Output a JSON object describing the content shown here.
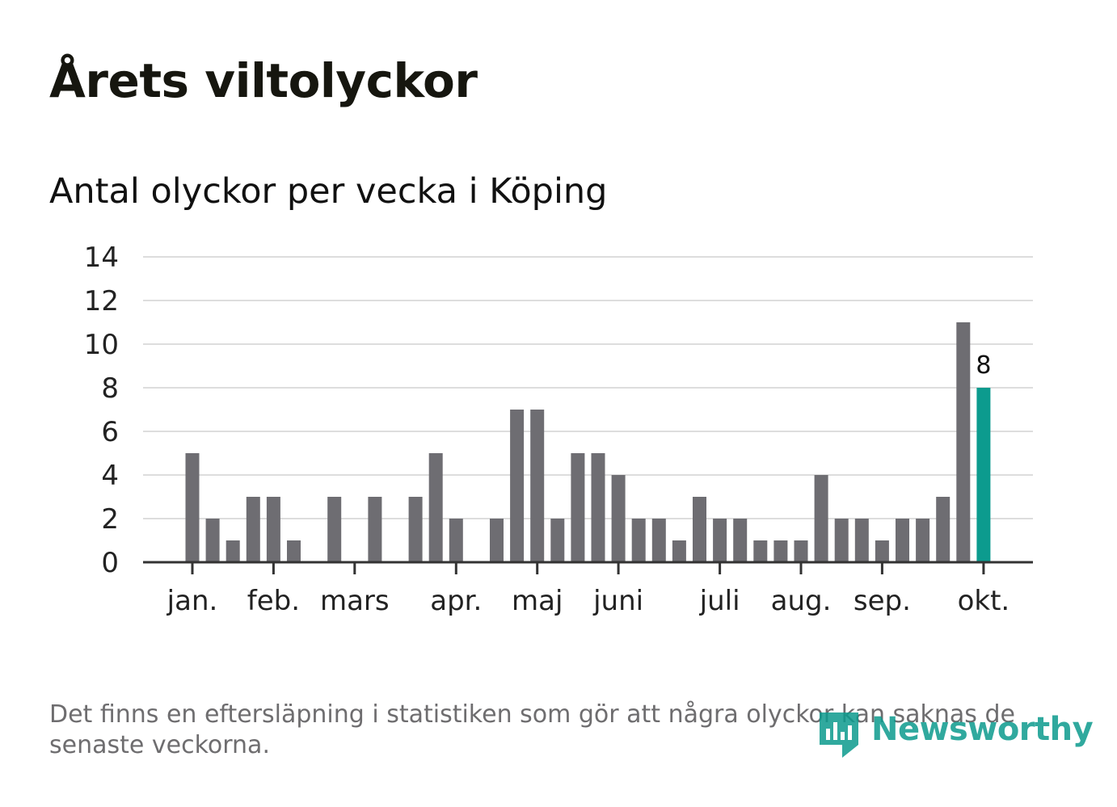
{
  "header": {
    "title": "Årets viltolyckor",
    "subtitle": "Antal olyckor per vecka i Köping"
  },
  "footer": {
    "note": "Det finns en eftersläpning i statistiken som gör att några olyckor kan saknas de senaste veckorna.",
    "logo_text": "Newsworthy"
  },
  "colors": {
    "bar": "#6e6d72",
    "highlight": "#0c9b8e",
    "grid": "#dddddd",
    "axis": "#333333"
  },
  "chart_data": {
    "type": "bar",
    "title": "Antal olyckor per vecka i Köping",
    "xlabel": "",
    "ylabel": "",
    "ylim": [
      0,
      14
    ],
    "yticks": [
      0,
      2,
      4,
      6,
      8,
      10,
      12,
      14
    ],
    "grid": true,
    "month_labels": [
      {
        "label": "jan.",
        "week": 1
      },
      {
        "label": "feb.",
        "week": 5
      },
      {
        "label": "mars",
        "week": 9
      },
      {
        "label": "apr.",
        "week": 14
      },
      {
        "label": "maj",
        "week": 18
      },
      {
        "label": "juni",
        "week": 22
      },
      {
        "label": "juli",
        "week": 27
      },
      {
        "label": "aug.",
        "week": 31
      },
      {
        "label": "sep.",
        "week": 35
      },
      {
        "label": "okt.",
        "week": 40
      }
    ],
    "weeks": [
      1,
      2,
      3,
      4,
      5,
      6,
      7,
      8,
      9,
      10,
      11,
      12,
      13,
      14,
      15,
      16,
      17,
      18,
      19,
      20,
      21,
      22,
      23,
      24,
      25,
      26,
      27,
      28,
      29,
      30,
      31,
      32,
      33,
      34,
      35,
      36,
      37,
      38,
      39,
      40
    ],
    "values": [
      5,
      2,
      1,
      3,
      3,
      1,
      0,
      3,
      0,
      3,
      0,
      3,
      5,
      2,
      0,
      2,
      7,
      7,
      2,
      5,
      5,
      4,
      2,
      2,
      1,
      3,
      2,
      2,
      1,
      1,
      1,
      4,
      2,
      2,
      1,
      2,
      2,
      3,
      11,
      8
    ],
    "highlight_index": 39,
    "highlight_label": "8"
  }
}
